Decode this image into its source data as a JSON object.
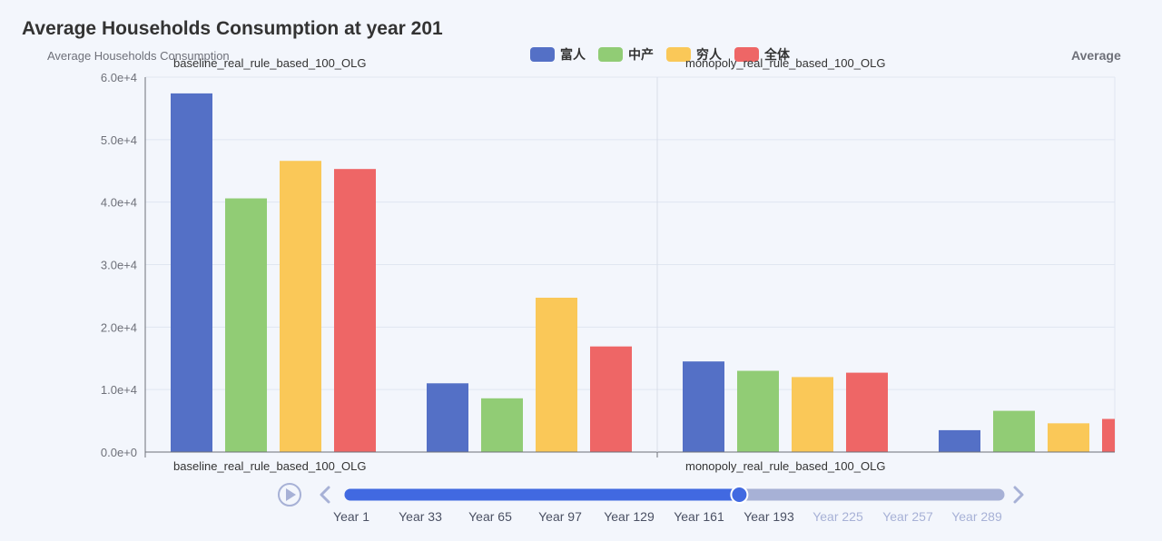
{
  "title": "Average Households Consumption at year 201",
  "legend": [
    {
      "name": "富人",
      "color": "#5470c6"
    },
    {
      "name": "中产",
      "color": "#91cc75"
    },
    {
      "name": "穷人",
      "color": "#fac858"
    },
    {
      "name": "全体",
      "color": "#ee6666"
    }
  ],
  "chart_data": {
    "type": "bar",
    "title": "Average Households Consumption at year 201",
    "ylabel": "Average Households Consumption",
    "right_panel_partial_label": "Average",
    "ylim": [
      0,
      60000
    ],
    "y_ticks": [
      "0.0e+0",
      "1.0e+4",
      "2.0e+4",
      "3.0e+4",
      "4.0e+4",
      "5.0e+4",
      "6.0e+4"
    ],
    "series": [
      {
        "name": "富人",
        "color": "#5470c6"
      },
      {
        "name": "中产",
        "color": "#91cc75"
      },
      {
        "name": "穷人",
        "color": "#fac858"
      },
      {
        "name": "全体",
        "color": "#ee6666"
      }
    ],
    "panels": [
      {
        "name": "baseline_real_rule_based_100_OLG",
        "groups": [
          [
            57400,
            40600,
            46600,
            45300
          ],
          [
            11000,
            8600,
            24700,
            16900
          ]
        ]
      },
      {
        "name": "monopoly_real_rule_based_100_OLG",
        "groups": [
          [
            14500,
            13000,
            12000,
            12700
          ],
          [
            3500,
            6600,
            4600,
            5300
          ]
        ]
      }
    ]
  },
  "timeline": {
    "labels": [
      "Year 1",
      "Year 33",
      "Year 65",
      "Year 97",
      "Year 129",
      "Year 161",
      "Year 193",
      "Year 225",
      "Year 257",
      "Year 289"
    ],
    "current_index": 6,
    "progress": 0.6,
    "active_color": "#4169e1",
    "inactive_color": "#a7b1d6"
  }
}
